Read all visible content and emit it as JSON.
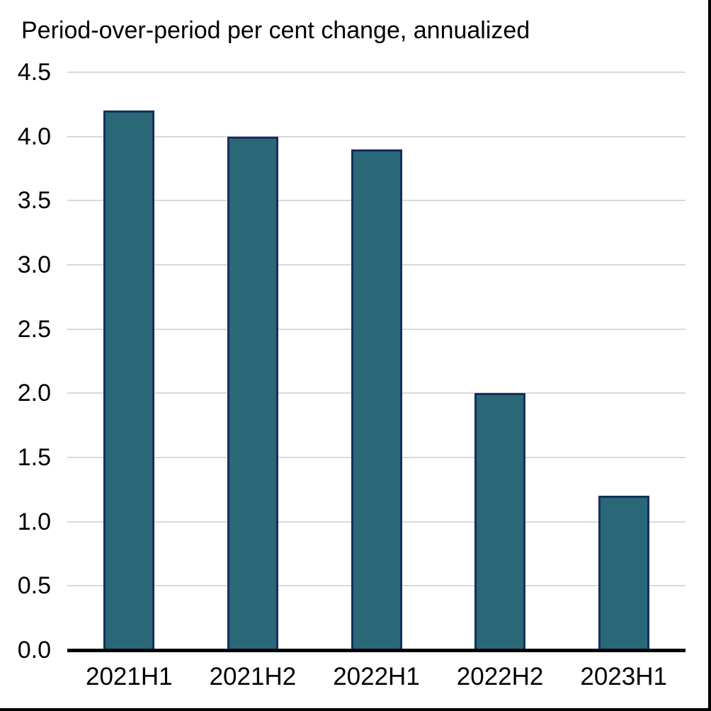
{
  "chart_data": {
    "type": "bar",
    "title": "Period-over-period per cent change, annualized",
    "categories": [
      "2021H1",
      "2021H2",
      "2022H1",
      "2022H2",
      "2023H1"
    ],
    "values": [
      4.2,
      4.0,
      3.9,
      2.0,
      1.2
    ],
    "xlabel": "",
    "ylabel": "",
    "ylim": [
      0,
      4.5
    ],
    "ytick_step": 0.5,
    "ytick_labels": [
      "0.0",
      "0.5",
      "1.0",
      "1.5",
      "2.0",
      "2.5",
      "3.0",
      "3.5",
      "4.0",
      "4.5"
    ],
    "grid": true,
    "legend_position": "none",
    "colors": {
      "bar_fill": "#2a6878",
      "bar_border": "#12305e",
      "gridline": "#d9d9d9",
      "axis": "#000000",
      "text": "#000000",
      "background": "#ffffff"
    }
  }
}
